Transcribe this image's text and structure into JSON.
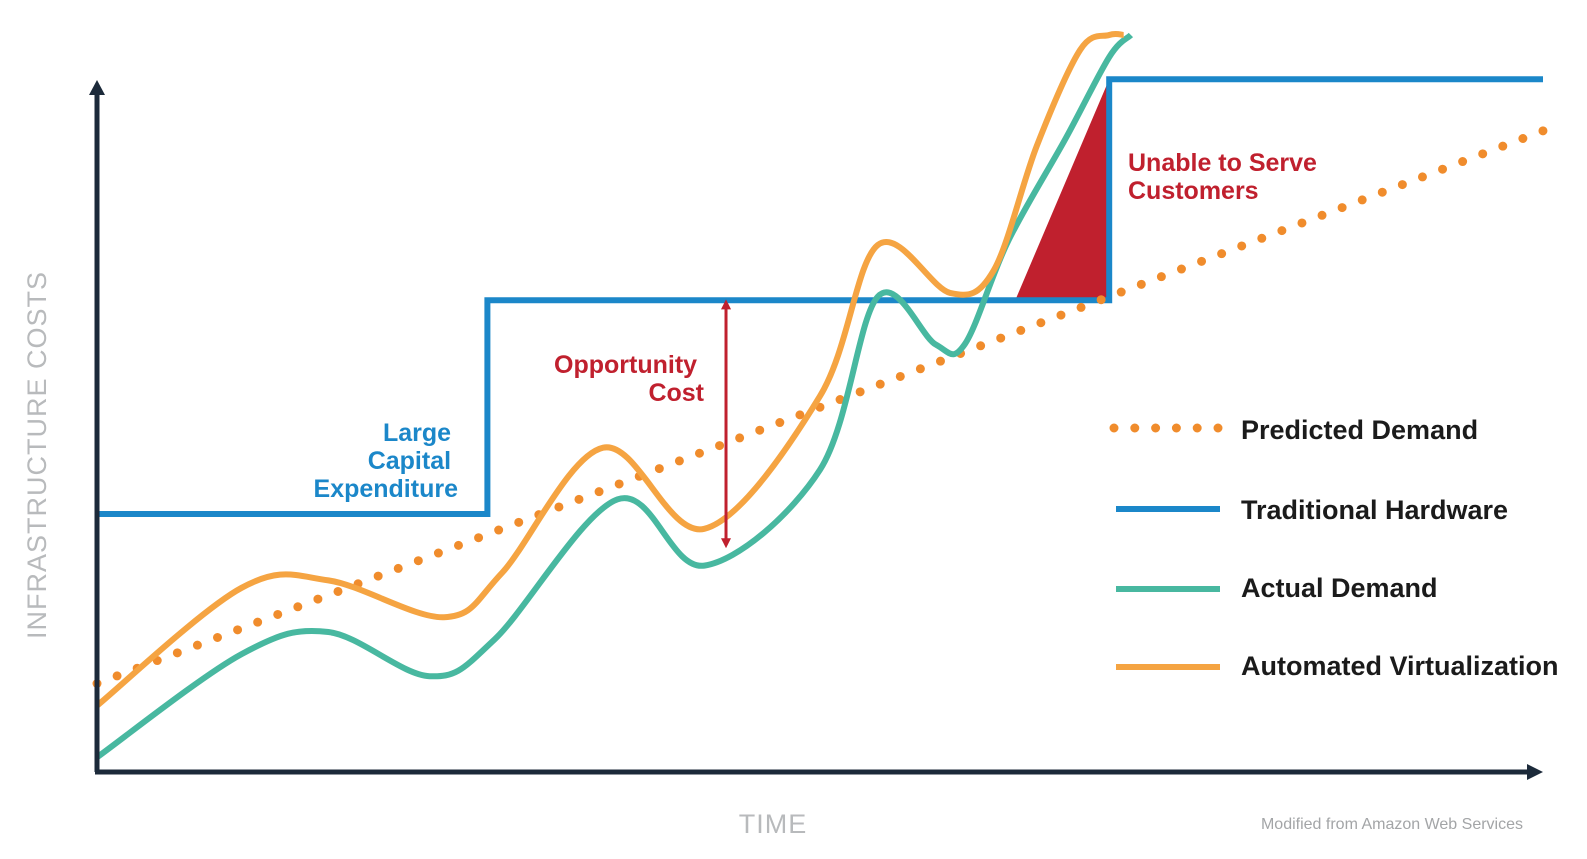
{
  "chart_data": {
    "type": "line",
    "xlabel": "TIME",
    "ylabel": "INFRASTRUCTURE COSTS",
    "xlim": [
      0,
      100
    ],
    "ylim": [
      0,
      100
    ],
    "series": [
      {
        "name": "Predicted Demand",
        "style": "dotted",
        "color": "#f08c2c",
        "x": [
          0,
          100
        ],
        "y": [
          12,
          87
        ]
      },
      {
        "name": "Traditional Hardware",
        "style": "step",
        "color": "#1b87c9",
        "x": [
          0,
          27,
          27,
          70,
          70,
          100
        ],
        "y": [
          35,
          35,
          64,
          64,
          94,
          94
        ]
      },
      {
        "name": "Actual Demand",
        "style": "smooth",
        "color": "#48b8a0",
        "x": [
          0,
          10,
          16,
          23,
          27.5,
          36,
          42,
          50,
          54,
          58,
          60,
          63,
          67,
          70,
          71.5
        ],
        "y": [
          2,
          16,
          19,
          13,
          18,
          37,
          28,
          41,
          64.5,
          58,
          58,
          72,
          86,
          97,
          100
        ]
      },
      {
        "name": "Automated Virtualization",
        "style": "smooth",
        "color": "#f5a442",
        "x": [
          0,
          10,
          16,
          24,
          28,
          35,
          42,
          50,
          54,
          59,
          62,
          65,
          68,
          70,
          71
        ],
        "y": [
          9,
          25,
          26,
          21,
          27,
          44,
          33,
          51,
          71.5,
          65,
          68,
          85,
          98,
          100,
          100
        ]
      }
    ],
    "annotations": [
      {
        "id": "large_capital",
        "lines": [
          "Large",
          "Capital",
          "Expenditure"
        ],
        "color": "#1b87c9"
      },
      {
        "id": "opportunity",
        "lines": [
          "Opportunity",
          "Cost"
        ],
        "color": "#c0202e",
        "x": 43.5,
        "y_from": 30.5,
        "y_to": 64
      },
      {
        "id": "unable",
        "lines": [
          "Unable to Serve",
          "Customers"
        ],
        "color": "#c0202e",
        "x_from": 63.5,
        "x_to": 70,
        "y_at_start": 64,
        "y_at_end": 94
      }
    ],
    "legend": {
      "position": "right",
      "items": [
        {
          "label": "Predicted Demand",
          "style": "dotted",
          "color": "#f08c2c"
        },
        {
          "label": "Traditional Hardware",
          "style": "solid",
          "color": "#1b87c9"
        },
        {
          "label": "Actual Demand",
          "style": "solid",
          "color": "#48b8a0"
        },
        {
          "label": "Automated Virtualization",
          "style": "solid",
          "color": "#f5a442"
        }
      ]
    },
    "credit": "Modified from Amazon Web Services"
  }
}
